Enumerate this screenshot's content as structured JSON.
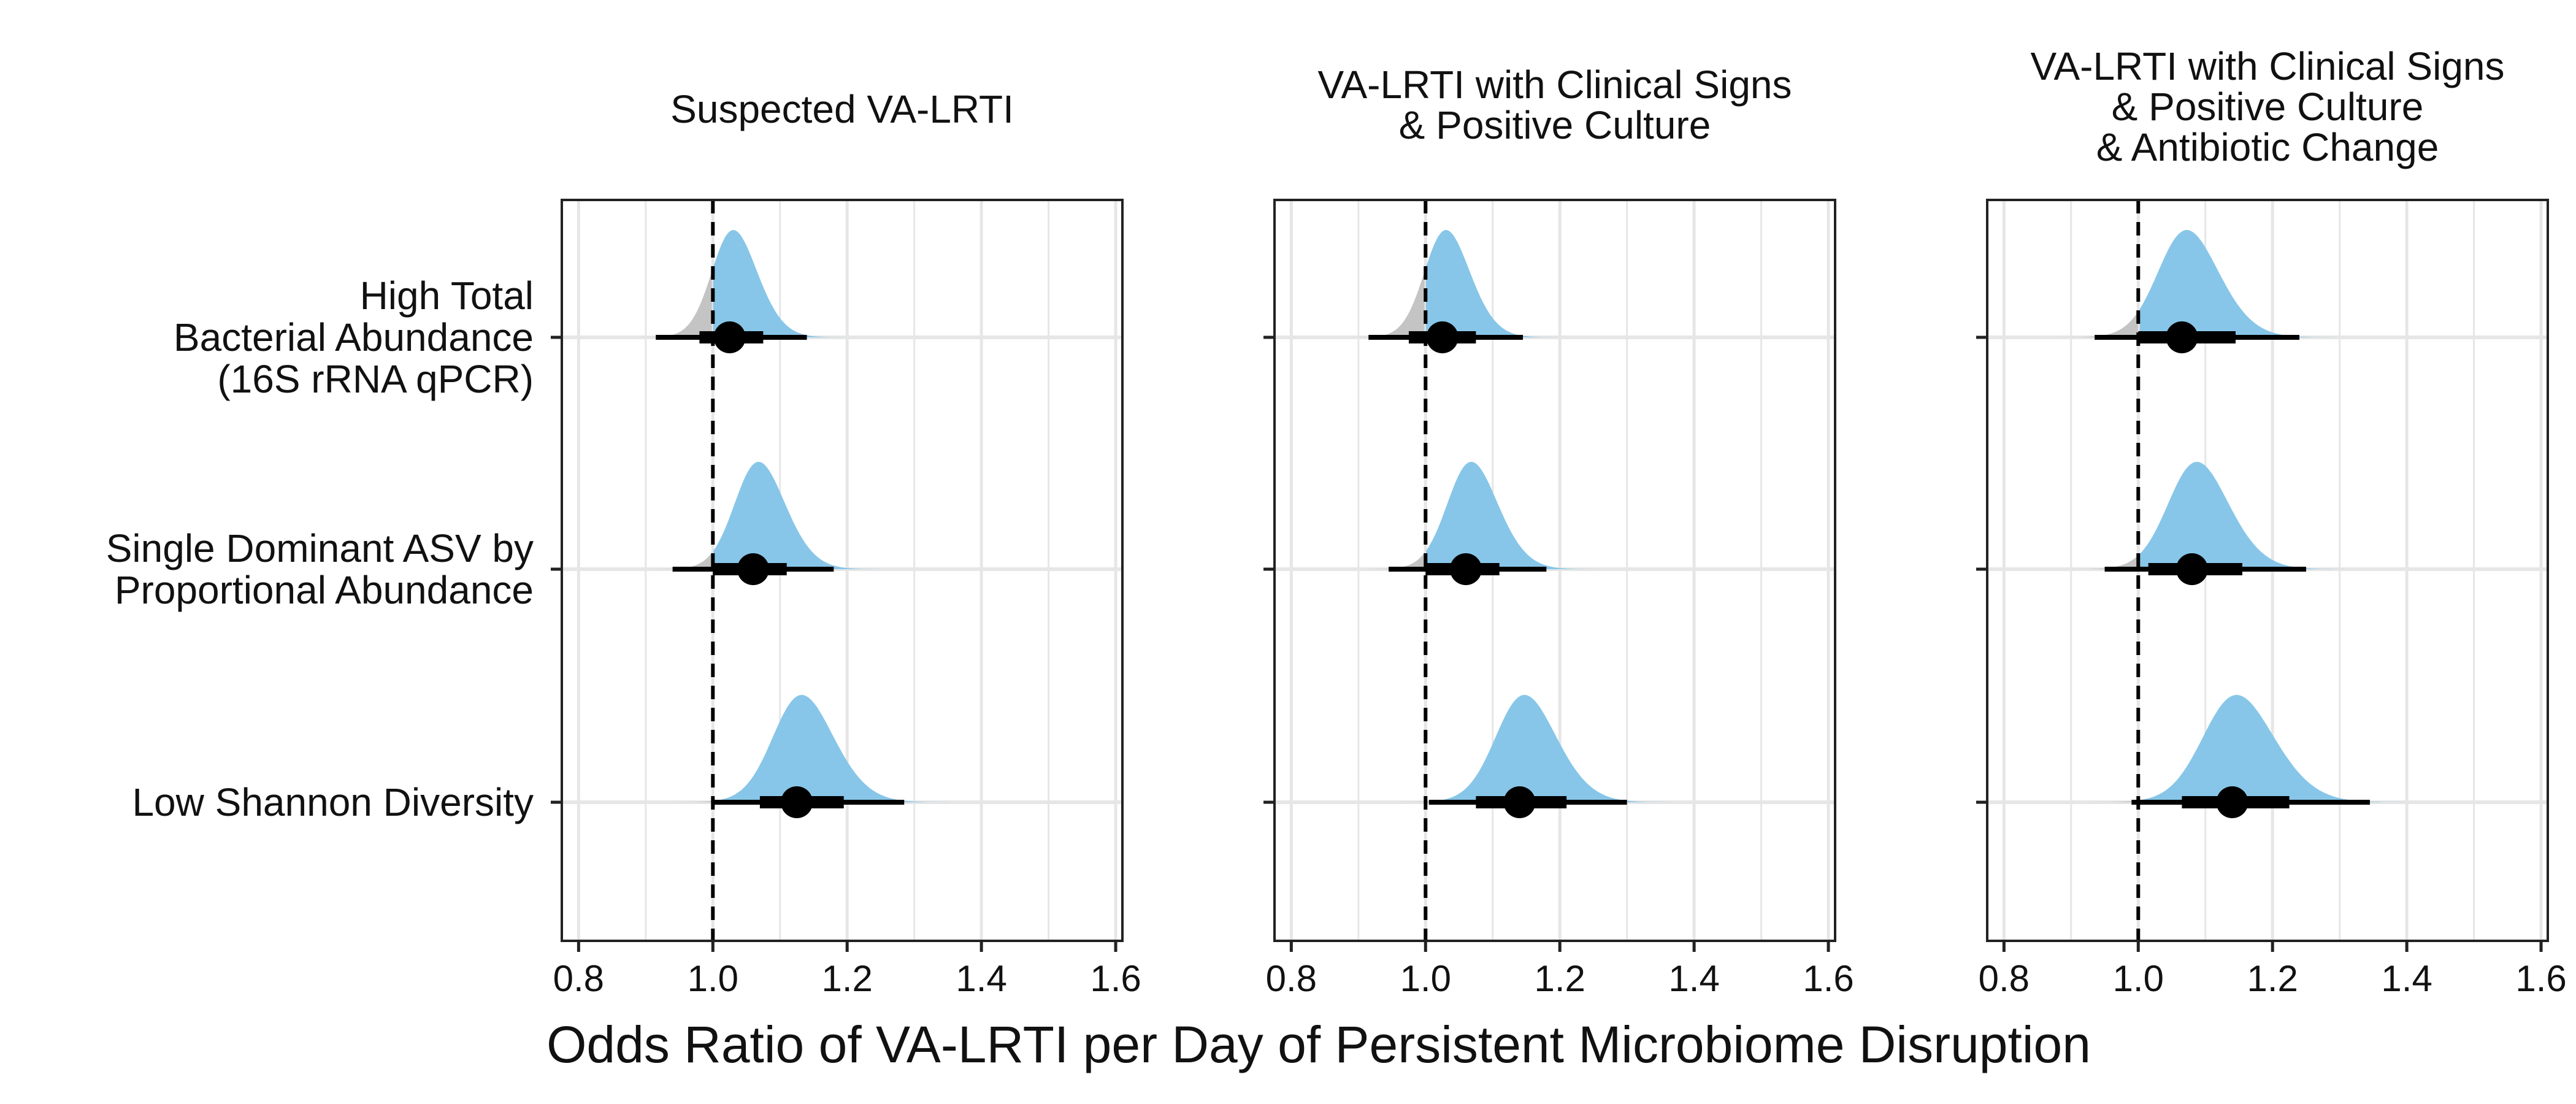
{
  "chart_data": {
    "type": "density-interval",
    "xlabel": "Odds Ratio of VA-LRTI per Day of Persistent Microbiome Disruption",
    "xlim": [
      0.775,
      1.61
    ],
    "xticks": [
      "0.8",
      "1.0",
      "1.2",
      "1.4",
      "1.6"
    ],
    "reference_line": 1.0,
    "rows": [
      {
        "label_lines": [
          "High Total",
          "Bacterial Abundance",
          "(16S rRNA qPCR)"
        ]
      },
      {
        "label_lines": [
          "Single Dominant ASV by",
          "Proportional Abundance"
        ]
      },
      {
        "label_lines": [
          "Low Shannon Diversity"
        ]
      }
    ],
    "colors": {
      "positive": "#87C6E8",
      "null": "#C4C4C4",
      "interval": "#000000",
      "grid": "#E6E6E6"
    },
    "facets": [
      {
        "title_lines": [
          "Suspected VA-LRTI"
        ],
        "estimates": [
          {
            "median": 1.025,
            "ci66": [
              0.98,
              1.075
            ],
            "ci95": [
              0.915,
              1.14
            ],
            "sd": 0.045,
            "skew": 0.03
          },
          {
            "median": 1.06,
            "ci66": [
              1.0,
              1.11
            ],
            "ci95": [
              0.94,
              1.18
            ],
            "sd": 0.05,
            "skew": 0.03
          },
          {
            "median": 1.125,
            "ci66": [
              1.07,
              1.195
            ],
            "ci95": [
              1.0,
              1.285
            ],
            "sd": 0.06,
            "skew": 0.04
          }
        ]
      },
      {
        "title_lines": [
          "VA-LRTI with Clinical Signs",
          "& Positive Culture"
        ],
        "estimates": [
          {
            "median": 1.025,
            "ci66": [
              0.975,
              1.075
            ],
            "ci95": [
              0.915,
              1.145
            ],
            "sd": 0.045,
            "skew": 0.03
          },
          {
            "median": 1.06,
            "ci66": [
              1.0,
              1.11
            ],
            "ci95": [
              0.945,
              1.18
            ],
            "sd": 0.05,
            "skew": 0.03
          },
          {
            "median": 1.14,
            "ci66": [
              1.075,
              1.21
            ],
            "ci95": [
              1.005,
              1.3
            ],
            "sd": 0.06,
            "skew": 0.04
          }
        ]
      },
      {
        "title_lines": [
          "VA-LRTI with Clinical Signs",
          "& Positive Culture",
          "& Antibiotic Change"
        ],
        "estimates": [
          {
            "median": 1.065,
            "ci66": [
              1.0,
              1.145
            ],
            "ci95": [
              0.935,
              1.24
            ],
            "sd": 0.06,
            "skew": 0.04
          },
          {
            "median": 1.08,
            "ci66": [
              1.015,
              1.155
            ],
            "ci95": [
              0.95,
              1.25
            ],
            "sd": 0.06,
            "skew": 0.04
          },
          {
            "median": 1.14,
            "ci66": [
              1.065,
              1.225
            ],
            "ci95": [
              0.99,
              1.345
            ],
            "sd": 0.07,
            "skew": 0.05
          }
        ]
      }
    ]
  }
}
